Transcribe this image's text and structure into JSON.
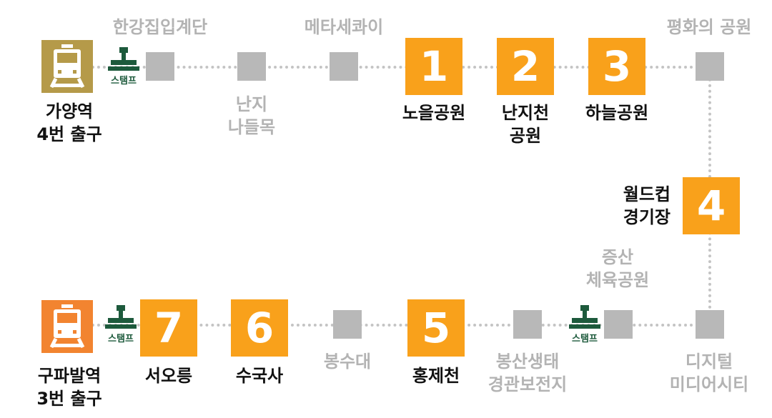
{
  "colors": {
    "orange": "#f9a11b",
    "gray_square": "#b8b8b8",
    "gray_text": "#b3b3b3",
    "dotted_line": "#c4c4c4",
    "start_gold": "#b59a49",
    "end_orange": "#f28430",
    "stamp_green": "#1d5a3c"
  },
  "start": {
    "label": "가양역\n4번 출구"
  },
  "end": {
    "label": "구파발역\n3번 출구"
  },
  "stamp_label": "스탬프",
  "waypoints": {
    "hangang_stairs": "한강집입계단",
    "nanji_naduelmok": "난지\n나들목",
    "metasequoia": "메타세콰이",
    "peace_park": "평화의 공원",
    "jeungsan_park": "증산\n체육공원",
    "digital_media_city": "디지털\n미디어시티",
    "bongsan_eco": "봉산생태\n경관보전지",
    "bongsudae": "봉수대"
  },
  "stations": [
    {
      "number": "1",
      "name": "노을공원"
    },
    {
      "number": "2",
      "name": "난지천\n공원"
    },
    {
      "number": "3",
      "name": "하늘공원"
    },
    {
      "number": "4",
      "name": "월드컵\n경기장"
    },
    {
      "number": "5",
      "name": "홍제천"
    },
    {
      "number": "6",
      "name": "수국사"
    },
    {
      "number": "7",
      "name": "서오릉"
    }
  ]
}
